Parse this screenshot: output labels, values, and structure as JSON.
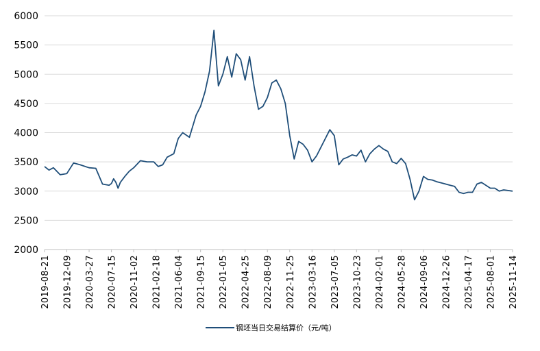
{
  "chart_data": {
    "type": "line",
    "title": "",
    "xlabel": "",
    "ylabel": "",
    "ylim": [
      2000,
      6000
    ],
    "yticks": [
      2000,
      2500,
      3000,
      3500,
      4000,
      4500,
      5000,
      5500,
      6000
    ],
    "xticks": [
      "2019-08-21",
      "2019-12-09",
      "2020-03-27",
      "2020-07-15",
      "2020-11-02",
      "2021-02-18",
      "2021-06-04",
      "2021-09-15",
      "2022-01-05",
      "2022-04-25",
      "2022-08-09",
      "2022-11-25",
      "2023-03-16",
      "2023-07-05",
      "2023-10-23",
      "2024-02-01",
      "2024-05-28",
      "2024-09-06",
      "2024-12-26",
      "2025-04-17",
      "2025-08-01",
      "2025-11-14"
    ],
    "grid": true,
    "legend_position": "bottom",
    "colors": {
      "series": "#1f4e79"
    },
    "series": [
      {
        "name": "钢坯当日交易结算价（元/吨）",
        "x": [
          0,
          0.2,
          0.4,
          0.7,
          1,
          1.3,
          1.6,
          2,
          2.3,
          2.6,
          2.9,
          3,
          3.1,
          3.2,
          3.3,
          3.4,
          3.6,
          3.8,
          4,
          4.3,
          4.6,
          4.9,
          5.1,
          5.3,
          5.5,
          5.8,
          6,
          6.2,
          6.5,
          6.8,
          7,
          7.2,
          7.4,
          7.6,
          7.8,
          8,
          8.2,
          8.4,
          8.6,
          8.8,
          9,
          9.2,
          9.4,
          9.6,
          9.8,
          10,
          10.2,
          10.4,
          10.6,
          10.8,
          11,
          11.2,
          11.4,
          11.6,
          11.8,
          12,
          12.2,
          12.4,
          12.6,
          12.8,
          13,
          13.2,
          13.4,
          13.6,
          13.8,
          14,
          14.2,
          14.4,
          14.6,
          14.8,
          15,
          15.2,
          15.4,
          15.6,
          15.8,
          16,
          16.2,
          16.4,
          16.6,
          16.8,
          17,
          17.2,
          17.4,
          17.6,
          17.8,
          18,
          18.2,
          18.4,
          18.6,
          18.8,
          19,
          19.2,
          19.4,
          19.6,
          19.8,
          20,
          20.2,
          20.4,
          20.6,
          20.8,
          21
        ],
        "values": [
          3420,
          3360,
          3400,
          3280,
          3300,
          3480,
          3450,
          3400,
          3390,
          3120,
          3100,
          3130,
          3210,
          3150,
          3050,
          3150,
          3250,
          3340,
          3400,
          3520,
          3500,
          3500,
          3420,
          3450,
          3580,
          3640,
          3900,
          4000,
          3920,
          4300,
          4450,
          4700,
          5050,
          5750,
          4800,
          5000,
          5300,
          4950,
          5350,
          5250,
          4900,
          5300,
          4800,
          4400,
          4450,
          4600,
          4850,
          4900,
          4750,
          4500,
          3950,
          3550,
          3850,
          3800,
          3700,
          3500,
          3600,
          3750,
          3900,
          4050,
          3950,
          3450,
          3550,
          3580,
          3620,
          3600,
          3700,
          3500,
          3640,
          3720,
          3780,
          3720,
          3680,
          3500,
          3470,
          3560,
          3470,
          3200,
          2850,
          3000,
          3250,
          3200,
          3190,
          3160,
          3140,
          3120,
          3100,
          3080,
          2980,
          2960,
          2980,
          2980,
          3120,
          3150,
          3100,
          3050,
          3050,
          3000,
          3020,
          3010,
          3000
        ]
      }
    ]
  }
}
